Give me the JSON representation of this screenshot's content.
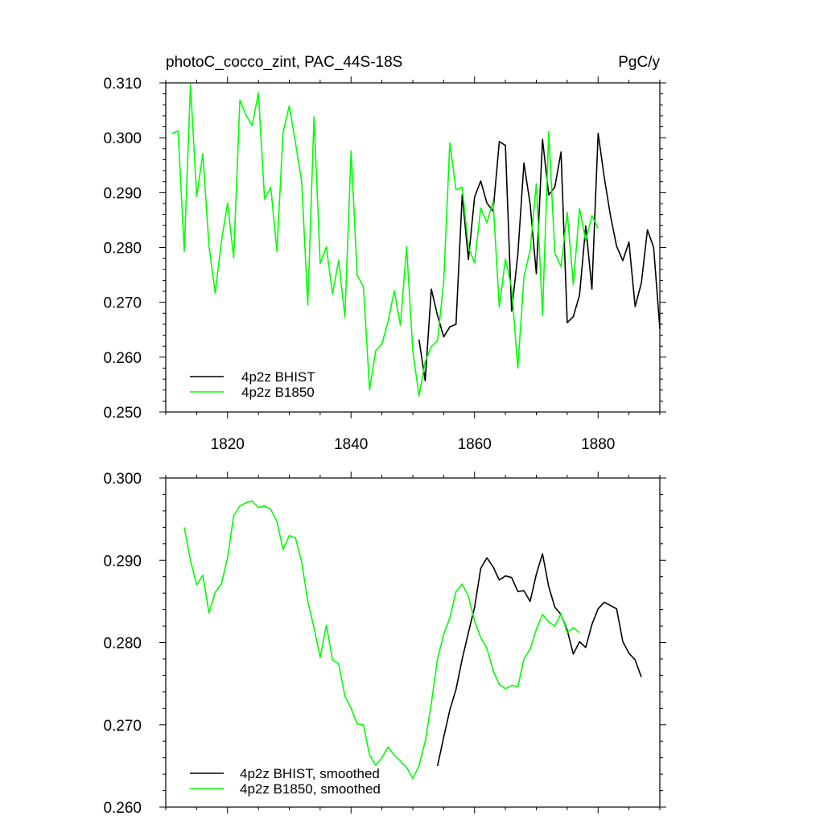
{
  "chart_data": [
    {
      "type": "line",
      "title_left": "photoC_cocco_zint, PAC_44S-18S",
      "title_right": "PgC/y",
      "xlim": [
        1810,
        1890
      ],
      "ylim": [
        0.25,
        0.31
      ],
      "x_ticks": [
        1820,
        1840,
        1860,
        1880
      ],
      "y_ticks": [
        "0.250",
        "0.260",
        "0.270",
        "0.280",
        "0.290",
        "0.300",
        "0.310"
      ],
      "show_x_tick_labels": true,
      "legend_position": "bottom-left",
      "series": [
        {
          "name": "4p2z BHIST",
          "color": "#000000",
          "x": [
            1851,
            1852,
            1853,
            1854,
            1855,
            1856,
            1857,
            1858,
            1859,
            1860,
            1861,
            1862,
            1863,
            1864,
            1865,
            1866,
            1867,
            1868,
            1869,
            1870,
            1871,
            1872,
            1873,
            1874,
            1875,
            1876,
            1877,
            1878,
            1879,
            1880,
            1881,
            1882,
            1883,
            1884,
            1885,
            1886,
            1887,
            1888,
            1889,
            1890
          ],
          "values": [
            0.2632,
            0.2557,
            0.2724,
            0.2676,
            0.2637,
            0.2655,
            0.266,
            0.2896,
            0.2778,
            0.2892,
            0.2921,
            0.2881,
            0.2866,
            0.2993,
            0.2986,
            0.2684,
            0.2787,
            0.2954,
            0.2879,
            0.2752,
            0.2997,
            0.2896,
            0.291,
            0.2974,
            0.2663,
            0.2674,
            0.2713,
            0.2839,
            0.2724,
            0.3008,
            0.2928,
            0.2858,
            0.2802,
            0.2776,
            0.281,
            0.2692,
            0.2735,
            0.2832,
            0.28,
            0.2652
          ]
        },
        {
          "name": "4p2z B1850",
          "color": "#00ff00",
          "x": [
            1811,
            1812,
            1813,
            1814,
            1815,
            1816,
            1817,
            1818,
            1819,
            1820,
            1821,
            1822,
            1823,
            1824,
            1825,
            1826,
            1827,
            1828,
            1829,
            1830,
            1831,
            1832,
            1833,
            1834,
            1835,
            1836,
            1837,
            1838,
            1839,
            1840,
            1841,
            1842,
            1843,
            1844,
            1845,
            1846,
            1847,
            1848,
            1849,
            1850,
            1851,
            1852,
            1853,
            1854,
            1855,
            1856,
            1857,
            1858,
            1859,
            1860,
            1861,
            1862,
            1863,
            1864,
            1865,
            1866,
            1867,
            1868,
            1869,
            1870,
            1871,
            1872,
            1873,
            1874,
            1875,
            1876,
            1877,
            1878,
            1879,
            1880
          ],
          "values": [
            0.3008,
            0.3012,
            0.2793,
            0.3097,
            0.2893,
            0.2971,
            0.2803,
            0.2717,
            0.281,
            0.2881,
            0.2781,
            0.3069,
            0.3041,
            0.3022,
            0.3082,
            0.2888,
            0.291,
            0.2793,
            0.301,
            0.3058,
            0.2991,
            0.292,
            0.2695,
            0.3038,
            0.2771,
            0.2801,
            0.2715,
            0.2777,
            0.2673,
            0.2976,
            0.2749,
            0.2729,
            0.2541,
            0.2612,
            0.2624,
            0.2665,
            0.2721,
            0.2658,
            0.2801,
            0.2611,
            0.2529,
            0.2592,
            0.2619,
            0.263,
            0.2737,
            0.2991,
            0.2905,
            0.291,
            0.28,
            0.2772,
            0.2872,
            0.2845,
            0.2884,
            0.2691,
            0.2779,
            0.2727,
            0.258,
            0.2746,
            0.2795,
            0.2916,
            0.2676,
            0.3011,
            0.279,
            0.2765,
            0.2864,
            0.2732,
            0.2871,
            0.2812,
            0.2858,
            0.2835
          ]
        }
      ]
    },
    {
      "type": "line",
      "xlim": [
        1810,
        1890
      ],
      "ylim": [
        0.26,
        0.3
      ],
      "x_ticks": [
        1820,
        1840,
        1860,
        1880
      ],
      "y_ticks": [
        "0.260",
        "0.270",
        "0.280",
        "0.290",
        "0.300"
      ],
      "show_x_tick_labels": false,
      "legend_position": "bottom-left",
      "series": [
        {
          "name": "4p2z BHIST, smoothed",
          "color": "#000000",
          "x": [
            1854,
            1855,
            1856,
            1857,
            1858,
            1859,
            1860,
            1861,
            1862,
            1863,
            1864,
            1865,
            1866,
            1867,
            1868,
            1869,
            1870,
            1871,
            1872,
            1873,
            1874,
            1875,
            1876,
            1877,
            1878,
            1879,
            1880,
            1881,
            1882,
            1883,
            1884,
            1885,
            1886,
            1887
          ],
          "values": [
            0.265,
            0.2685,
            0.2718,
            0.2743,
            0.278,
            0.2812,
            0.2843,
            0.289,
            0.2903,
            0.2892,
            0.2876,
            0.2881,
            0.2879,
            0.2862,
            0.2863,
            0.285,
            0.2883,
            0.2908,
            0.2868,
            0.2843,
            0.2834,
            0.2815,
            0.2786,
            0.2801,
            0.2794,
            0.2822,
            0.2841,
            0.2849,
            0.2845,
            0.2841,
            0.2801,
            0.2787,
            0.2779,
            0.2758
          ]
        },
        {
          "name": "4p2z B1850, smoothed",
          "color": "#00ff00",
          "x": [
            1813,
            1814,
            1815,
            1816,
            1817,
            1818,
            1819,
            1820,
            1821,
            1822,
            1823,
            1824,
            1825,
            1826,
            1827,
            1828,
            1829,
            1830,
            1831,
            1832,
            1833,
            1834,
            1835,
            1836,
            1837,
            1838,
            1839,
            1840,
            1841,
            1842,
            1843,
            1844,
            1845,
            1846,
            1847,
            1848,
            1849,
            1850,
            1851,
            1852,
            1853,
            1854,
            1855,
            1856,
            1857,
            1858,
            1859,
            1860,
            1861,
            1862,
            1863,
            1864,
            1865,
            1866,
            1867,
            1868,
            1869,
            1870,
            1871,
            1872,
            1873,
            1874,
            1875,
            1876,
            1877
          ],
          "values": [
            0.294,
            0.29,
            0.287,
            0.2882,
            0.2836,
            0.2861,
            0.2871,
            0.2903,
            0.2954,
            0.2966,
            0.297,
            0.2972,
            0.2964,
            0.2966,
            0.2962,
            0.2947,
            0.2913,
            0.293,
            0.2927,
            0.2898,
            0.285,
            0.2818,
            0.2782,
            0.2821,
            0.2779,
            0.2774,
            0.2735,
            0.272,
            0.2701,
            0.27,
            0.2663,
            0.2651,
            0.266,
            0.2673,
            0.2663,
            0.2656,
            0.2648,
            0.2635,
            0.265,
            0.268,
            0.2726,
            0.278,
            0.281,
            0.283,
            0.2862,
            0.2871,
            0.2856,
            0.2826,
            0.2806,
            0.2793,
            0.2766,
            0.2749,
            0.2744,
            0.2748,
            0.2746,
            0.278,
            0.2792,
            0.2816,
            0.2834,
            0.2825,
            0.282,
            0.2835,
            0.2812,
            0.2818,
            0.2812
          ]
        }
      ]
    }
  ]
}
